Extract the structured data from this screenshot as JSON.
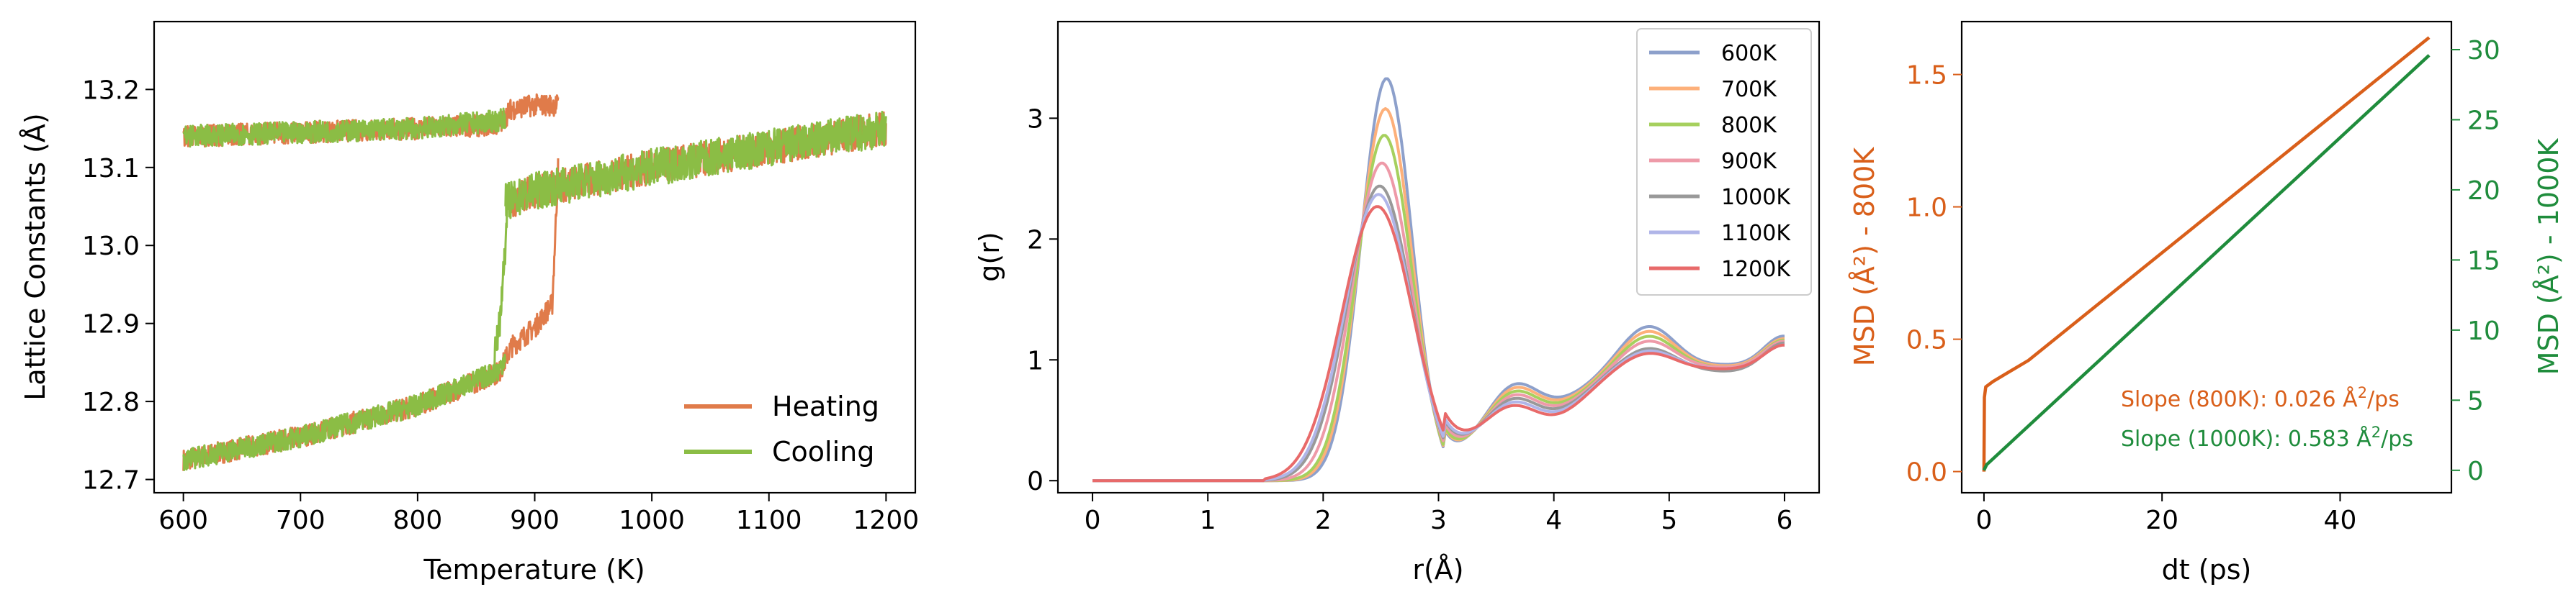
{
  "chart_data": [
    {
      "type": "line",
      "xlabel": "Temperature (K)",
      "ylabel": "Lattice Constants (Å)",
      "xlim": [
        575,
        1225
      ],
      "ylim": [
        12.683,
        13.287
      ],
      "xticks": [
        600,
        700,
        800,
        900,
        1000,
        1100,
        1200
      ],
      "yticks": [
        12.7,
        12.8,
        12.9,
        13.0,
        13.1,
        13.2
      ],
      "legend_position": "lower-right",
      "series": [
        {
          "name": "Heating",
          "color": "#e07b4a",
          "branches": [
            {
              "x": [
                600,
                700,
                800,
                870,
                880,
                900,
                915,
                920
              ],
              "y": [
                12.725,
                12.755,
                12.795,
                12.838,
                12.87,
                12.895,
                12.925,
                13.1
              ],
              "noise": 0.014
            },
            {
              "x": [
                600,
                700,
                800,
                870,
                880,
                900,
                920
              ],
              "y": [
                13.14,
                13.145,
                13.15,
                13.155,
                13.175,
                13.18,
                13.18
              ],
              "noise": 0.014
            },
            {
              "x": [
                880,
                900,
                1000,
                1100,
                1200
              ],
              "y": [
                13.055,
                13.07,
                13.1,
                13.125,
                13.15
              ],
              "noise": 0.022
            }
          ]
        },
        {
          "name": "Cooling",
          "color": "#8bbd45",
          "branches": [
            {
              "x": [
                600,
                700,
                800,
                870,
                875
              ],
              "y": [
                12.725,
                12.755,
                12.795,
                12.84,
                12.86
              ],
              "noise": 0.014
            },
            {
              "x": [
                600,
                700,
                800,
                870,
                875
              ],
              "y": [
                13.14,
                13.145,
                13.15,
                13.16,
                13.165
              ],
              "noise": 0.014
            },
            {
              "x": [
                875,
                900,
                1000,
                1100,
                1200
              ],
              "y": [
                13.055,
                13.07,
                13.1,
                13.125,
                13.15
              ],
              "noise": 0.024
            },
            {
              "x": [
                865,
                870,
                875,
                878
              ],
              "y": [
                12.85,
                12.9,
                13.0,
                13.1
              ],
              "noise": 0.02
            }
          ]
        }
      ]
    },
    {
      "type": "line",
      "xlabel": "r(Å)",
      "ylabel": "g(r)",
      "xlim": [
        -0.3,
        6.3
      ],
      "ylim": [
        -0.1,
        3.8
      ],
      "xticks": [
        0,
        1,
        2,
        3,
        4,
        5,
        6
      ],
      "yticks": [
        0,
        1,
        2,
        3
      ],
      "legend_position": "top-right",
      "series": [
        {
          "name": "600K",
          "color": "#8da0cb",
          "peak1": 3.33,
          "center": 2.55,
          "width": 0.22,
          "second": [
            1.28,
            1.05,
            1.29
          ]
        },
        {
          "name": "700K",
          "color": "#fdb07a",
          "peak1": 3.08,
          "center": 2.54,
          "width": 0.23,
          "second": [
            1.24,
            1.04,
            1.27
          ]
        },
        {
          "name": "800K",
          "color": "#a6d05e",
          "peak1": 2.86,
          "center": 2.53,
          "width": 0.24,
          "second": [
            1.2,
            1.03,
            1.26
          ]
        },
        {
          "name": "900K",
          "color": "#ee9aa8",
          "peak1": 2.63,
          "center": 2.51,
          "width": 0.26,
          "second": [
            1.16,
            1.03,
            1.25
          ]
        },
        {
          "name": "1000K",
          "color": "#999999",
          "peak1": 2.44,
          "center": 2.49,
          "width": 0.28,
          "second": [
            1.1,
            1.0,
            1.24
          ]
        },
        {
          "name": "1100K",
          "color": "#b0b5e8",
          "peak1": 2.37,
          "center": 2.48,
          "width": 0.29,
          "second": [
            1.08,
            1.02,
            1.22
          ]
        },
        {
          "name": "1200K",
          "color": "#e86a6a",
          "peak1": 2.27,
          "center": 2.47,
          "width": 0.31,
          "second": [
            1.06,
            1.02,
            1.22
          ]
        }
      ]
    },
    {
      "type": "line",
      "xlabel": "dt (ps)",
      "ylabel_left": "MSD (Å²) - 800K",
      "ylabel_right": "MSD (Å²) - 1000K",
      "xlim": [
        -2.5,
        52.5
      ],
      "ylim_left": [
        -0.08,
        1.7
      ],
      "ylim_right": [
        -1.6,
        32.0
      ],
      "xticks": [
        0,
        20,
        40
      ],
      "yticks_left": [
        "0.0",
        "0.5",
        "1.0",
        "1.5"
      ],
      "yticks_right": [
        "0",
        "5",
        "10",
        "15",
        "20",
        "25",
        "30"
      ],
      "left_color": "#d95f1a",
      "right_color": "#1f8c3c",
      "series": [
        {
          "name": "800K",
          "axis": "left",
          "color": "#d95f1a",
          "x": [
            0,
            0.05,
            0.2,
            1,
            2,
            5,
            50
          ],
          "y": [
            0.0,
            0.28,
            0.32,
            0.34,
            0.36,
            0.42,
            1.64
          ]
        },
        {
          "name": "1000K",
          "axis": "right",
          "color": "#1f8c3c",
          "x": [
            0,
            0.3,
            50
          ],
          "y": [
            0.0,
            0.4,
            29.6
          ]
        }
      ],
      "annotations": [
        {
          "prefix": "Slope (800K): 0.026 Å",
          "sup": "2",
          "suffix": "/ps",
          "color": "#d95f1a"
        },
        {
          "prefix": "Slope (1000K): 0.583 Å",
          "sup": "2",
          "suffix": "/ps",
          "color": "#1f8c3c"
        }
      ]
    }
  ]
}
